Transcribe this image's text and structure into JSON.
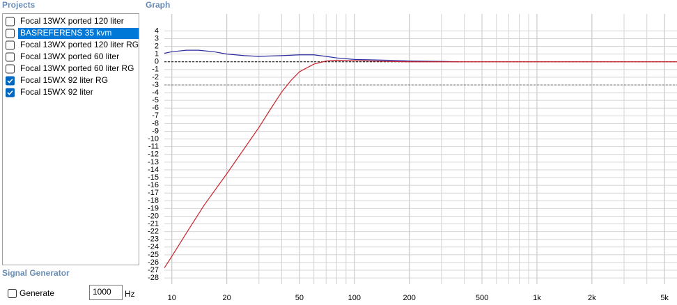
{
  "projects": {
    "title": "Projects",
    "items": [
      {
        "label": "Focal 13WX ported 120 liter",
        "checked": false,
        "selected": false
      },
      {
        "label": "BASREFERENS 35 kvm",
        "checked": false,
        "selected": true
      },
      {
        "label": "Focal 13WX ported 120 liter RG",
        "checked": false,
        "selected": false
      },
      {
        "label": "Focal 13WX ported 60 liter",
        "checked": false,
        "selected": false
      },
      {
        "label": "Focal 13WX ported 60 liter RG",
        "checked": false,
        "selected": false
      },
      {
        "label": "Focal 15WX 92 liter RG",
        "checked": true,
        "selected": false
      },
      {
        "label": "Focal 15WX 92 liter",
        "checked": true,
        "selected": false
      }
    ]
  },
  "signal_generator": {
    "title": "Signal Generator",
    "generate_label": "Generate",
    "checked": false,
    "frequency": "1000",
    "unit": "Hz"
  },
  "chart_data": {
    "type": "line",
    "title": "Graph",
    "log_x": true,
    "grid": true,
    "xlim": [
      9.1,
      5850
    ],
    "ylim": [
      -28.8,
      6.2
    ],
    "xticks": [
      10,
      20,
      50,
      100,
      200,
      500,
      {
        "value": 1000,
        "label": "1k"
      },
      {
        "value": 2000,
        "label": "2k"
      },
      {
        "value": 5000,
        "label": "5k"
      }
    ],
    "yticks": [
      4,
      3,
      2,
      1,
      0,
      -1,
      -2,
      -3,
      -4,
      -5,
      -6,
      -7,
      -8,
      -9,
      -10,
      -11,
      -12,
      -13,
      -14,
      -15,
      -16,
      -17,
      -18,
      -19,
      -20,
      -21,
      -22,
      -23,
      -24,
      -25,
      -26,
      -27,
      -28
    ],
    "reference_lines": [
      {
        "value": 0,
        "color": "#000000"
      },
      {
        "value": -3,
        "color": "#777777"
      }
    ],
    "series": [
      {
        "color": "#2b2b9c",
        "x": [
          9.1,
          10,
          12,
          14,
          17,
          20,
          25,
          30,
          40,
          50,
          60,
          70,
          80,
          100,
          150,
          200,
          300,
          370
        ],
        "values": [
          1.1,
          1.3,
          1.5,
          1.5,
          1.3,
          1.0,
          0.8,
          0.7,
          0.8,
          0.9,
          0.9,
          0.7,
          0.5,
          0.3,
          0.2,
          0.1,
          0.05,
          0
        ]
      },
      {
        "color": "#c8202a",
        "x": [
          9.1,
          10,
          12,
          15,
          20,
          25,
          30,
          35,
          40,
          45,
          50,
          60,
          70,
          80,
          100,
          150,
          200,
          500,
          5850
        ],
        "values": [
          -26.7,
          -25.2,
          -22.2,
          -18.6,
          -14.5,
          -11.2,
          -8.5,
          -6.0,
          -3.9,
          -2.4,
          -1.3,
          -0.3,
          0.1,
          0.2,
          0.15,
          0.05,
          0,
          0,
          0
        ]
      }
    ]
  }
}
